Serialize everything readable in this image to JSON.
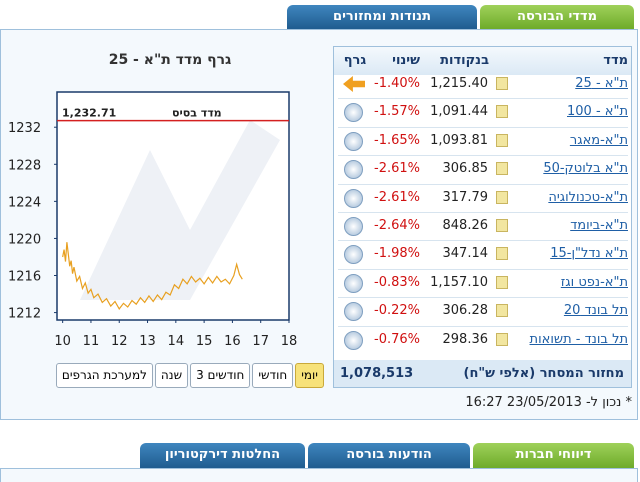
{
  "tabs": [
    "מדדי הבורסה",
    "תנודות ומחזורים"
  ],
  "index_table": {
    "headers": [
      "מדד",
      "בנקודות",
      "שינוי",
      "גרף"
    ],
    "rows": [
      {
        "name": "ת\"א - 25",
        "points": "1,215.40",
        "change": "-1.40%"
      },
      {
        "name": "ת\"א - 100",
        "points": "1,091.44",
        "change": "-1.57%"
      },
      {
        "name": "ת\"א-מאגר",
        "points": "1,093.81",
        "change": "-1.65%"
      },
      {
        "name": "ת\"א בלוטק-50",
        "points": "306.85",
        "change": "-2.61%"
      },
      {
        "name": "ת\"א-טכנולוגיה",
        "points": "317.79",
        "change": "-2.61%"
      },
      {
        "name": "ת\"א-ביומד",
        "points": "848.26",
        "change": "-2.64%"
      },
      {
        "name": "ת\"א נדל\"ן-15",
        "points": "347.14",
        "change": "-1.98%"
      },
      {
        "name": "ת\"א-נפט וגז",
        "points": "1,157.10",
        "change": "-0.83%"
      },
      {
        "name": "תל בונד 20",
        "points": "306.28",
        "change": "-0.22%"
      },
      {
        "name": "תל בונד - תשואות",
        "points": "298.36",
        "change": "-0.76%"
      }
    ],
    "turnover_label": "מחזור המסחר (אלפי ש\"ח)",
    "turnover_value": "1,078,513"
  },
  "timestamp": "* נכון ל- 23/05/2013 16:27",
  "chart_data": {
    "type": "line",
    "title": "גרף מדד ת\"א - 25",
    "base": {
      "label": "מדד בסיס",
      "value": 1232.71,
      "value_label": "1,232.71",
      "color": "#d42020"
    },
    "color": "#e8a020",
    "x": [
      10.0,
      10.05,
      10.1,
      10.15,
      10.2,
      10.25,
      10.3,
      10.35,
      10.4,
      10.5,
      10.6,
      10.7,
      10.8,
      10.9,
      11.0,
      11.1,
      11.25,
      11.4,
      11.55,
      11.7,
      11.85,
      12.0,
      12.15,
      12.3,
      12.45,
      12.6,
      12.75,
      12.9,
      13.05,
      13.2,
      13.35,
      13.5,
      13.65,
      13.8,
      13.95,
      14.1,
      14.25,
      14.4,
      14.55,
      14.7,
      14.85,
      15.0,
      15.15,
      15.3,
      15.45,
      15.6,
      15.75,
      15.9,
      16.05,
      16.15,
      16.25,
      16.35
    ],
    "values": [
      1218,
      1218.8,
      1217.5,
      1219.6,
      1218.3,
      1217,
      1217.6,
      1216.2,
      1216.9,
      1215.4,
      1215.9,
      1214.6,
      1215.2,
      1214.1,
      1214.5,
      1213.6,
      1214.0,
      1213.1,
      1213.5,
      1212.7,
      1213.2,
      1212.4,
      1213.0,
      1212.6,
      1213.3,
      1212.9,
      1213.6,
      1213.1,
      1213.8,
      1213.2,
      1213.9,
      1213.4,
      1214.2,
      1213.9,
      1215.0,
      1214.6,
      1215.6,
      1215.1,
      1215.9,
      1215.3,
      1215.7,
      1215.1,
      1215.8,
      1215.2,
      1215.9,
      1215.3,
      1215.6,
      1215.1,
      1216.0,
      1217.2,
      1216.1,
      1215.6
    ],
    "xlim": [
      9.8,
      18
    ],
    "ylim": [
      1211.2,
      1235.8
    ],
    "xticks": [
      10,
      11,
      12,
      13,
      14,
      15,
      16,
      17,
      18
    ],
    "yticks": [
      1232,
      1228,
      1224,
      1220,
      1216,
      1212
    ]
  },
  "range_buttons": [
    "יומי",
    "חודשי",
    "3 חודשים",
    "שנה",
    "למערכת הגרפים"
  ],
  "bottom_tabs": [
    "דיווחי חברות",
    "הודעות בורסה",
    "החלטות דירקטוריון"
  ]
}
